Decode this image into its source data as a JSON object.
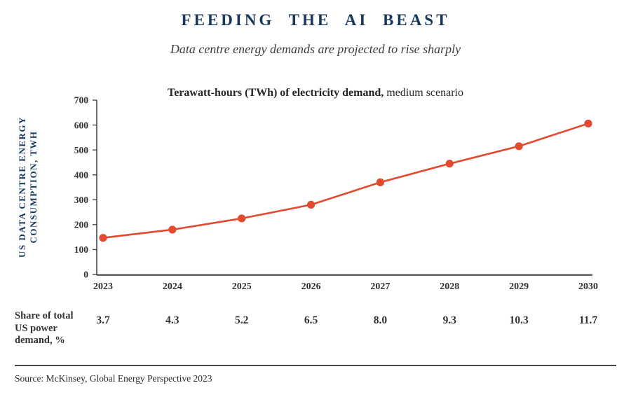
{
  "header": {
    "title": "FEEDING THE AI BEAST",
    "subtitle": "Data centre energy demands are projected to rise sharply"
  },
  "chart_data": {
    "type": "line",
    "title_bold": "Terawatt-hours (TWh) of electricity demand,",
    "title_regular": " medium scenario",
    "ylabel_lines": [
      "US DATA CENTRE ENERGY",
      "CONSUMPTION, TWH"
    ],
    "categories": [
      "2023",
      "2024",
      "2025",
      "2026",
      "2027",
      "2028",
      "2029",
      "2030"
    ],
    "series": [
      {
        "name": "US data centre energy consumption, TWh (medium scenario)",
        "values": [
          147,
          180,
          225,
          280,
          370,
          445,
          515,
          606
        ]
      }
    ],
    "ylim": [
      0,
      700
    ],
    "ytick_step": 100,
    "grid": false,
    "legend": "none",
    "marker": "circle",
    "share_row": {
      "label_lines": [
        "Share of total",
        "US power",
        "demand, %"
      ],
      "values": [
        "3.7",
        "4.3",
        "5.2",
        "6.5",
        "8.0",
        "9.3",
        "10.3",
        "11.7"
      ]
    }
  },
  "footer": {
    "source": "Source: McKinsey, Global Energy Perspective 2023"
  },
  "colors": {
    "line_red": "#e2492f",
    "navy": "#17375c",
    "axis_gray": "#3c3c3c",
    "text_gray": "#333333"
  }
}
